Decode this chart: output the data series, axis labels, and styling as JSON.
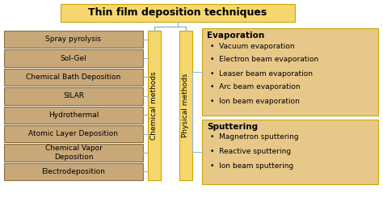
{
  "title": "Thin film deposition techniques",
  "title_box_color": "#F5D76E",
  "title_box_edge": "#C8A800",
  "chemical_methods_label": "Chemical methods",
  "physical_methods_label": "Physical methods",
  "vertical_bar_color": "#F5D76E",
  "vertical_bar_edge": "#C8A800",
  "left_boxes": [
    "Spray pyrolysis",
    "Sol-Gel",
    "Chemical Bath Deposition",
    "SILAR",
    "Hydrothermal",
    "Atomic Layer Deposition",
    "Chemical Vapor\nDeposition",
    "Electrodeposition"
  ],
  "left_box_color": "#C8A878",
  "left_box_edge": "#8B7040",
  "evaporation_title": "Evaporation",
  "evaporation_items": [
    "Vacuum evaporation",
    "Electron beam evaporation",
    "Leaser beam evaporation",
    "Arc beam evaporation",
    "Ion beam evaporation"
  ],
  "sputtering_title": "Sputtering",
  "sputtering_items": [
    "Magnetron sputtering",
    "Reactive sputtering",
    "Ion beam sputtering"
  ],
  "right_box_color": "#E8C888",
  "right_box_edge": "#C8A800",
  "line_color": "#90B8D0",
  "background_color": "#FFFFFF",
  "fig_width": 4.74,
  "fig_height": 2.5,
  "dpi": 100
}
